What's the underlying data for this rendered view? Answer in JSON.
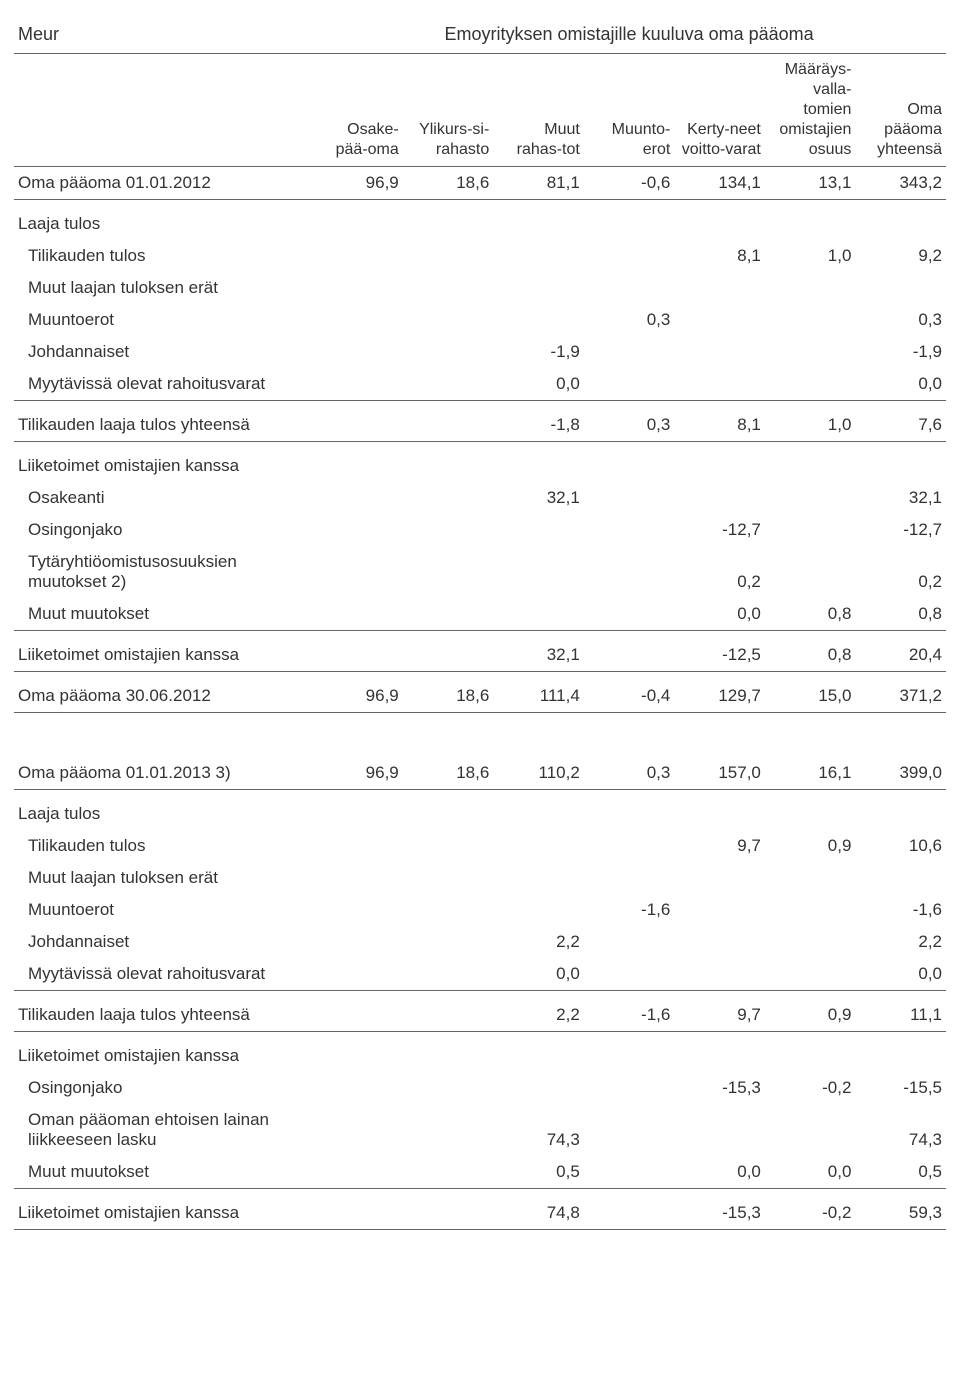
{
  "title_left": "Meur",
  "title_right": "Emoyrityksen omistajille kuuluva oma pääoma",
  "columns": {
    "c1": "Osake-\npää-oma",
    "c2": "Ylikurs-si-\nrahasto",
    "c3": "Muut\nrahas-tot",
    "c4": "Muunto-\nerot",
    "c5": "Kerty-neet\nvoitto-varat",
    "c6": "Määräys-\nvalla-\ntomien\nomistajien\nosuus",
    "c7": "Oma\npääoma\nyhteensä"
  },
  "rows": [
    {
      "label": "Oma pääoma 01.01.2012",
      "v": [
        "96,9",
        "18,6",
        "81,1",
        "-0,6",
        "134,1",
        "13,1",
        "343,2"
      ],
      "border": true
    },
    {
      "label": "Laaja tulos",
      "v": [
        "",
        "",
        "",
        "",
        "",
        "",
        ""
      ],
      "section": true
    },
    {
      "label": "Tilikauden tulos",
      "v": [
        "",
        "",
        "",
        "",
        "8,1",
        "1,0",
        "9,2"
      ],
      "indent": 1
    },
    {
      "label": "Muut laajan tuloksen erät",
      "v": [
        "",
        "",
        "",
        "",
        "",
        "",
        ""
      ],
      "indent": 1
    },
    {
      "label": "Muuntoerot",
      "v": [
        "",
        "",
        "",
        "0,3",
        "",
        "",
        "0,3"
      ],
      "indent": 2
    },
    {
      "label": "Johdannaiset",
      "v": [
        "",
        "",
        "-1,9",
        "",
        "",
        "",
        "-1,9"
      ],
      "indent": 2
    },
    {
      "label": "Myytävissä olevat rahoitusvarat",
      "v": [
        "",
        "",
        "0,0",
        "",
        "",
        "",
        "0,0"
      ],
      "indent": 2,
      "border": true
    },
    {
      "label": "Tilikauden laaja tulos yhteensä",
      "v": [
        "",
        "",
        "-1,8",
        "0,3",
        "8,1",
        "1,0",
        "7,6"
      ],
      "section": true,
      "border": true
    },
    {
      "label": "Liiketoimet omistajien kanssa",
      "v": [
        "",
        "",
        "",
        "",
        "",
        "",
        ""
      ],
      "section": true
    },
    {
      "label": "Osakeanti",
      "v": [
        "",
        "",
        "32,1",
        "",
        "",
        "",
        "32,1"
      ],
      "indent": 1
    },
    {
      "label": "Osingonjako",
      "v": [
        "",
        "",
        "",
        "",
        "-12,7",
        "",
        "-12,7"
      ],
      "indent": 1
    },
    {
      "label": "Tytäryhtiöomistusosuuksien muutokset 2)",
      "v": [
        "",
        "",
        "",
        "",
        "0,2",
        "",
        "0,2"
      ],
      "indent": 1
    },
    {
      "label": "Muut muutokset",
      "v": [
        "",
        "",
        "",
        "",
        "0,0",
        "0,8",
        "0,8"
      ],
      "indent": 1,
      "border": true
    },
    {
      "label": "Liiketoimet omistajien kanssa",
      "v": [
        "",
        "",
        "32,1",
        "",
        "-12,5",
        "0,8",
        "20,4"
      ],
      "section": true,
      "border": true
    },
    {
      "label": "Oma pääoma 30.06.2012",
      "v": [
        "96,9",
        "18,6",
        "111,4",
        "-0,4",
        "129,7",
        "15,0",
        "371,2"
      ],
      "section": true,
      "border": true
    },
    {
      "gap": true
    },
    {
      "label": "Oma pääoma 01.01.2013 3)",
      "v": [
        "96,9",
        "18,6",
        "110,2",
        "0,3",
        "157,0",
        "16,1",
        "399,0"
      ],
      "section": true,
      "border": true
    },
    {
      "label": "Laaja tulos",
      "v": [
        "",
        "",
        "",
        "",
        "",
        "",
        ""
      ],
      "section": true
    },
    {
      "label": "Tilikauden tulos",
      "v": [
        "",
        "",
        "",
        "",
        "9,7",
        "0,9",
        "10,6"
      ],
      "indent": 1
    },
    {
      "label": "Muut laajan tuloksen erät",
      "v": [
        "",
        "",
        "",
        "",
        "",
        "",
        ""
      ],
      "indent": 1
    },
    {
      "label": "Muuntoerot",
      "v": [
        "",
        "",
        "",
        "-1,6",
        "",
        "",
        "-1,6"
      ],
      "indent": 2
    },
    {
      "label": "Johdannaiset",
      "v": [
        "",
        "",
        "2,2",
        "",
        "",
        "",
        "2,2"
      ],
      "indent": 2
    },
    {
      "label": "Myytävissä olevat rahoitusvarat",
      "v": [
        "",
        "",
        "0,0",
        "",
        "",
        "",
        "0,0"
      ],
      "indent": 2,
      "border": true
    },
    {
      "label": "Tilikauden laaja tulos yhteensä",
      "v": [
        "",
        "",
        "2,2",
        "-1,6",
        "9,7",
        "0,9",
        "11,1"
      ],
      "section": true,
      "border": true
    },
    {
      "label": "Liiketoimet omistajien kanssa",
      "v": [
        "",
        "",
        "",
        "",
        "",
        "",
        ""
      ],
      "section": true
    },
    {
      "label": "Osingonjako",
      "v": [
        "",
        "",
        "",
        "",
        "-15,3",
        "-0,2",
        "-15,5"
      ],
      "indent": 1
    },
    {
      "label": "Oman pääoman ehtoisen lainan liikkeeseen lasku",
      "v": [
        "",
        "",
        "74,3",
        "",
        "",
        "",
        "74,3"
      ],
      "indent": 1
    },
    {
      "label": "Muut muutokset",
      "v": [
        "",
        "",
        "0,5",
        "",
        "0,0",
        "0,0",
        "0,5"
      ],
      "indent": 1,
      "border": true
    },
    {
      "label": "Liiketoimet omistajien kanssa",
      "v": [
        "",
        "",
        "74,8",
        "",
        "-15,3",
        "-0,2",
        "59,3"
      ],
      "section": true,
      "border": true
    }
  ]
}
